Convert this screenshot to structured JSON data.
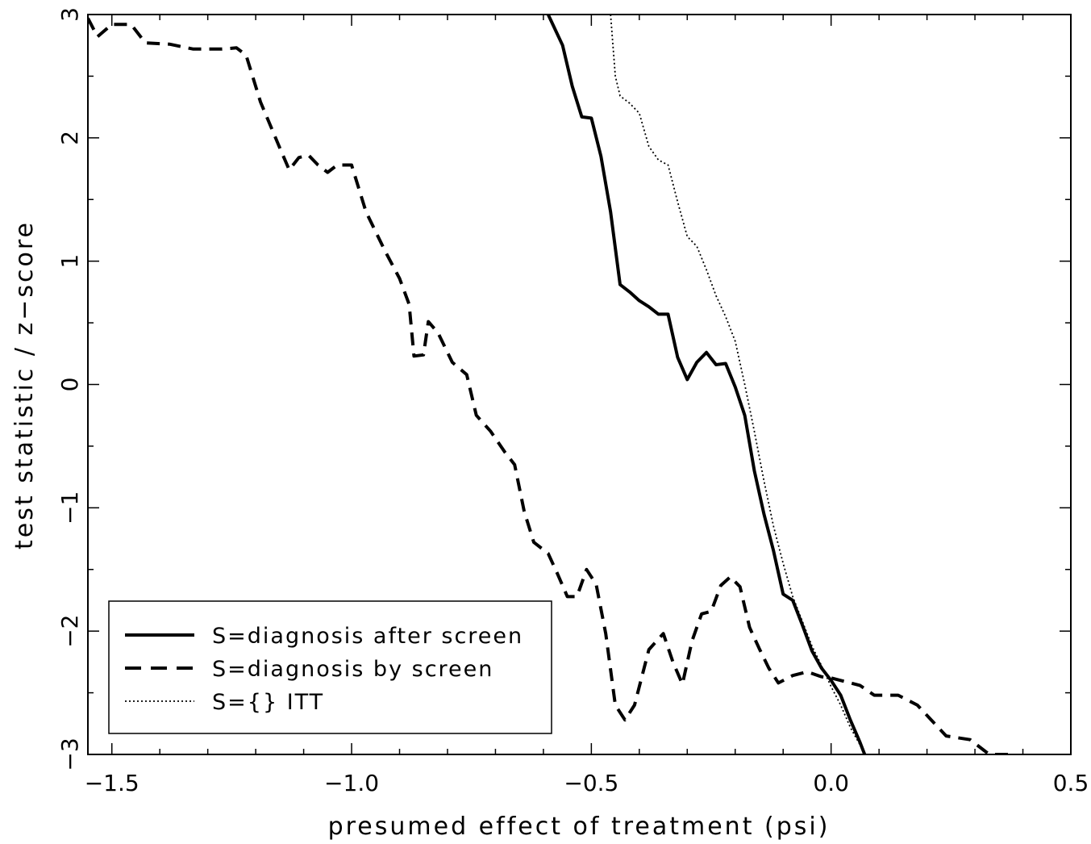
{
  "chart_data": {
    "type": "line",
    "title": "",
    "xlabel": "presumed effect of treatment (psi)",
    "ylabel": "test statistic  /  z−score",
    "xlim": [
      -1.55,
      0.5
    ],
    "ylim": [
      -3,
      3
    ],
    "grid": false,
    "legend_position": "bottom-left",
    "x_ticks": [
      -1.5,
      -1.0,
      -0.5,
      0.0,
      0.5
    ],
    "x_tick_labels": [
      "−1.5",
      "−1.0",
      "−0.5",
      "0.0",
      "0.5"
    ],
    "y_ticks": [
      -3,
      -2,
      -1,
      0,
      1,
      2,
      3
    ],
    "y_tick_labels": [
      "−3",
      "−2",
      "−1",
      "0",
      "1",
      "2",
      "3"
    ],
    "series": [
      {
        "name": "S=diagnosis after screen",
        "style": "solid",
        "color": "#000000",
        "points": [
          [
            -0.59,
            3.0
          ],
          [
            -0.56,
            2.75
          ],
          [
            -0.54,
            2.42
          ],
          [
            -0.52,
            2.17
          ],
          [
            -0.5,
            2.16
          ],
          [
            -0.48,
            1.85
          ],
          [
            -0.46,
            1.4
          ],
          [
            -0.44,
            0.81
          ],
          [
            -0.42,
            0.75
          ],
          [
            -0.4,
            0.68
          ],
          [
            -0.38,
            0.63
          ],
          [
            -0.36,
            0.57
          ],
          [
            -0.34,
            0.57
          ],
          [
            -0.32,
            0.22
          ],
          [
            -0.3,
            0.04
          ],
          [
            -0.28,
            0.18
          ],
          [
            -0.26,
            0.26
          ],
          [
            -0.24,
            0.16
          ],
          [
            -0.22,
            0.17
          ],
          [
            -0.2,
            -0.02
          ],
          [
            -0.18,
            -0.25
          ],
          [
            -0.16,
            -0.7
          ],
          [
            -0.14,
            -1.05
          ],
          [
            -0.12,
            -1.35
          ],
          [
            -0.1,
            -1.7
          ],
          [
            -0.08,
            -1.75
          ],
          [
            -0.06,
            -1.95
          ],
          [
            -0.04,
            -2.16
          ],
          [
            -0.02,
            -2.3
          ],
          [
            0.0,
            -2.4
          ],
          [
            0.02,
            -2.52
          ],
          [
            0.04,
            -2.72
          ],
          [
            0.06,
            -2.9
          ],
          [
            0.07,
            -3.0
          ]
        ]
      },
      {
        "name": "S=diagnosis by screen",
        "style": "dashed",
        "color": "#000000",
        "points": [
          [
            -1.55,
            2.97
          ],
          [
            -1.53,
            2.82
          ],
          [
            -1.5,
            2.92
          ],
          [
            -1.48,
            2.92
          ],
          [
            -1.46,
            2.92
          ],
          [
            -1.43,
            2.77
          ],
          [
            -1.38,
            2.76
          ],
          [
            -1.33,
            2.72
          ],
          [
            -1.27,
            2.72
          ],
          [
            -1.24,
            2.73
          ],
          [
            -1.22,
            2.67
          ],
          [
            -1.19,
            2.29
          ],
          [
            -1.15,
            1.92
          ],
          [
            -1.13,
            1.74
          ],
          [
            -1.11,
            1.84
          ],
          [
            -1.09,
            1.86
          ],
          [
            -1.07,
            1.78
          ],
          [
            -1.05,
            1.72
          ],
          [
            -1.03,
            1.78
          ],
          [
            -1.0,
            1.78
          ],
          [
            -0.97,
            1.4
          ],
          [
            -0.93,
            1.08
          ],
          [
            -0.9,
            0.86
          ],
          [
            -0.88,
            0.65
          ],
          [
            -0.87,
            0.23
          ],
          [
            -0.85,
            0.24
          ],
          [
            -0.84,
            0.51
          ],
          [
            -0.82,
            0.42
          ],
          [
            -0.79,
            0.18
          ],
          [
            -0.76,
            0.08
          ],
          [
            -0.74,
            -0.25
          ],
          [
            -0.71,
            -0.38
          ],
          [
            -0.68,
            -0.55
          ],
          [
            -0.66,
            -0.65
          ],
          [
            -0.64,
            -1.03
          ],
          [
            -0.62,
            -1.28
          ],
          [
            -0.59,
            -1.37
          ],
          [
            -0.57,
            -1.54
          ],
          [
            -0.55,
            -1.72
          ],
          [
            -0.53,
            -1.72
          ],
          [
            -0.51,
            -1.5
          ],
          [
            -0.49,
            -1.62
          ],
          [
            -0.47,
            -2.02
          ],
          [
            -0.45,
            -2.6
          ],
          [
            -0.43,
            -2.72
          ],
          [
            -0.41,
            -2.6
          ],
          [
            -0.38,
            -2.15
          ],
          [
            -0.35,
            -2.02
          ],
          [
            -0.33,
            -2.25
          ],
          [
            -0.31,
            -2.43
          ],
          [
            -0.29,
            -2.08
          ],
          [
            -0.27,
            -1.86
          ],
          [
            -0.25,
            -1.84
          ],
          [
            -0.23,
            -1.63
          ],
          [
            -0.21,
            -1.56
          ],
          [
            -0.19,
            -1.64
          ],
          [
            -0.17,
            -1.97
          ],
          [
            -0.15,
            -2.14
          ],
          [
            -0.13,
            -2.3
          ],
          [
            -0.11,
            -2.42
          ],
          [
            -0.08,
            -2.36
          ],
          [
            -0.05,
            -2.33
          ],
          [
            -0.02,
            -2.37
          ],
          [
            0.0,
            -2.38
          ],
          [
            0.02,
            -2.4
          ],
          [
            0.06,
            -2.44
          ],
          [
            0.09,
            -2.52
          ],
          [
            0.14,
            -2.52
          ],
          [
            0.18,
            -2.6
          ],
          [
            0.24,
            -2.85
          ],
          [
            0.29,
            -2.88
          ],
          [
            0.33,
            -3.0
          ],
          [
            0.38,
            -3.0
          ]
        ]
      },
      {
        "name": "S={} ITT",
        "style": "dotted",
        "color": "#000000",
        "points": [
          [
            -0.46,
            3.0
          ],
          [
            -0.45,
            2.5
          ],
          [
            -0.44,
            2.34
          ],
          [
            -0.42,
            2.28
          ],
          [
            -0.4,
            2.2
          ],
          [
            -0.38,
            1.93
          ],
          [
            -0.36,
            1.82
          ],
          [
            -0.34,
            1.78
          ],
          [
            -0.32,
            1.48
          ],
          [
            -0.3,
            1.2
          ],
          [
            -0.28,
            1.12
          ],
          [
            -0.26,
            0.93
          ],
          [
            -0.24,
            0.72
          ],
          [
            -0.22,
            0.55
          ],
          [
            -0.2,
            0.35
          ],
          [
            -0.18,
            0.0
          ],
          [
            -0.16,
            -0.38
          ],
          [
            -0.14,
            -0.78
          ],
          [
            -0.12,
            -1.15
          ],
          [
            -0.1,
            -1.45
          ],
          [
            -0.08,
            -1.72
          ],
          [
            -0.06,
            -1.92
          ],
          [
            -0.04,
            -2.12
          ],
          [
            -0.02,
            -2.28
          ],
          [
            0.0,
            -2.45
          ],
          [
            0.02,
            -2.6
          ],
          [
            0.04,
            -2.78
          ],
          [
            0.06,
            -2.92
          ],
          [
            0.07,
            -3.0
          ]
        ]
      }
    ]
  }
}
